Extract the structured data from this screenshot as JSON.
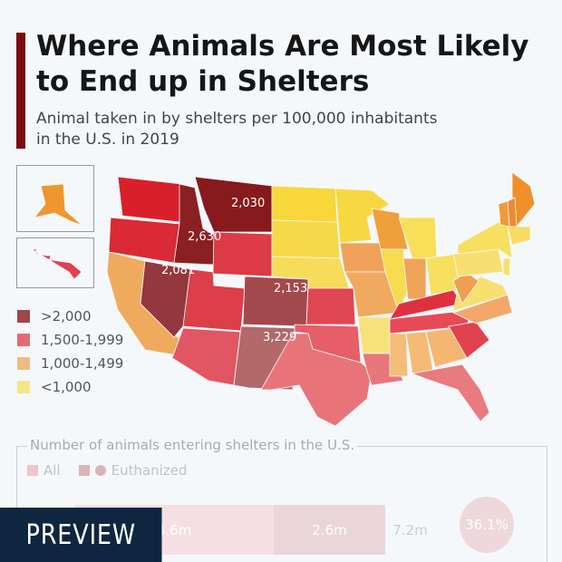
{
  "header": {
    "title": "Where Animals Are Most Likely to End up in Shelters",
    "subtitle_line1": "Animal taken in by shelters per 100,000 inhabitants",
    "subtitle_line2": "in the U.S. in 2019"
  },
  "legend": [
    {
      "label": ">2,000",
      "color": "#a0464c"
    },
    {
      "label": "1,500-1,999",
      "color": "#e36b72"
    },
    {
      "label": "1,000-1,499",
      "color": "#f2ba84"
    },
    {
      "label": "<1,000",
      "color": "#f6e68a"
    }
  ],
  "state_colors": {
    "WA": "#d8202a",
    "OR": "#d92a35",
    "CA": "#f0aa5e",
    "NV": "#93383c",
    "ID": "#8a2022",
    "MT": "#861a1c",
    "WY": "#dc3a46",
    "UT": "#dc3e4a",
    "CO": "#a2494d",
    "AZ": "#e25563",
    "NM": "#b3686a",
    "ND": "#f7d73a",
    "SD": "#f6d848",
    "NE": "#f5dc5a",
    "KS": "#e04653",
    "OK": "#e55e68",
    "TX": "#e8747a",
    "MN": "#f7d840",
    "IA": "#f0a25a",
    "MO": "#f0aa60",
    "AR": "#f7e27a",
    "LA": "#e8777c",
    "WI": "#f0a03a",
    "IL": "#f7dc50",
    "MI": "#f7df5a",
    "IN": "#f0a458",
    "OH": "#f7e060",
    "KY": "#e0303f",
    "TN": "#e64a57",
    "MS": "#f5bc78",
    "AL": "#f5ba74",
    "GA": "#f5b670",
    "FL": "#e87a80",
    "SC": "#e04250",
    "NC": "#f3a86a",
    "VA": "#f7e070",
    "WV": "#eea050",
    "PA": "#f7e070",
    "NY": "#f7df60",
    "NJ": "#f7e070",
    "ME": "#f0902a",
    "NH": "#ee8a30",
    "VT": "#f09a3a",
    "MA": "#f7dc60",
    "AK": "#f0962e",
    "HI": "#e04050"
  },
  "state_labels": {
    "MT": "2,030",
    "ID": "2,630",
    "NV": "2,081",
    "CO": "2,153",
    "NM": "3,229"
  },
  "bottom_panel": {
    "title": "Number of animals entering shelters in the U.S.",
    "legend_all": "All",
    "legend_euthanized": "Euthanized",
    "value_1": "4.6m",
    "value_2": "2.6m",
    "total": "7.2m",
    "percent": "36.1%"
  },
  "preview_label": "PREVIEW"
}
